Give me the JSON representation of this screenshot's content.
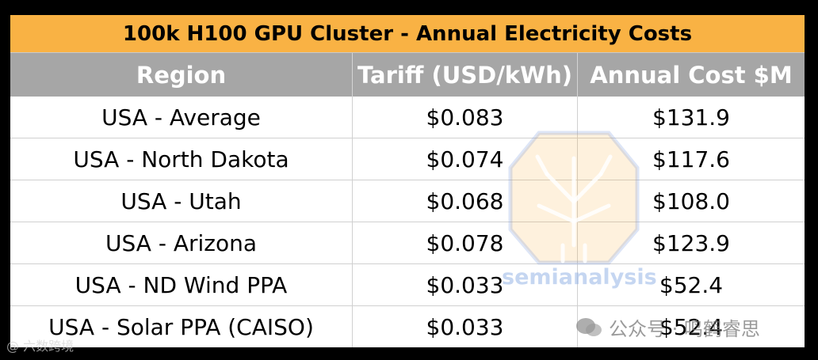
{
  "chart_data": {
    "type": "table",
    "title": "100k H100 GPU Cluster - Annual Electricity Costs",
    "columns": [
      "Region",
      "Tariff (USD/kWh)",
      "Annual Cost $M"
    ],
    "rows": [
      {
        "region": "USA - Average",
        "tariff": "$0.083",
        "cost": "$131.9"
      },
      {
        "region": "USA - North Dakota",
        "tariff": "$0.074",
        "cost": "$117.6"
      },
      {
        "region": "USA - Utah",
        "tariff": "$0.068",
        "cost": "$108.0"
      },
      {
        "region": "USA - Arizona",
        "tariff": "$0.078",
        "cost": "$123.9"
      },
      {
        "region": "USA - ND Wind PPA",
        "tariff": "$0.033",
        "cost": "$52.4"
      },
      {
        "region": "USA - Solar PPA (CAISO)",
        "tariff": "$0.033",
        "cost": "$52.4"
      }
    ],
    "tariff_values": [
      0.083,
      0.074,
      0.068,
      0.078,
      0.033,
      0.033
    ],
    "cost_values_musd": [
      131.9,
      117.6,
      108.0,
      123.9,
      52.4,
      52.4
    ]
  },
  "colors": {
    "title_bg": "#f9b244",
    "header_bg": "#a6a6a6",
    "header_text": "#ffffff",
    "frame": "#000000"
  },
  "watermarks": {
    "logo_text": "semianalysis",
    "wechat_label": "公众号 · 鸣鹤睿思",
    "corner_label": "@ 六数跨境"
  }
}
